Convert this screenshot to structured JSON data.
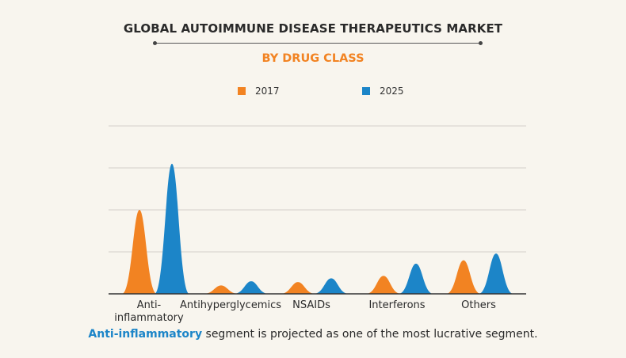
{
  "title": "GLOBAL AUTOIMMUNE DISEASE THERAPEUTICS MARKET",
  "subtitle": "BY DRUG CLASS",
  "legend": [
    {
      "label": "2017",
      "color": "#f28322"
    },
    {
      "label": "2025",
      "color": "#1c85c8"
    }
  ],
  "caption": {
    "highlight": "Anti-inflammatory",
    "rest": " segment is projected as one of the most lucrative segment."
  },
  "chart_data": {
    "type": "area",
    "categories": [
      "Anti-inflammatory",
      "Antihyperglycemics",
      "NSAIDs",
      "Interferons",
      "Others"
    ],
    "series": [
      {
        "name": "2017",
        "color": "#f28322",
        "values": [
          2.0,
          0.2,
          0.28,
          0.43,
          0.8
        ]
      },
      {
        "name": "2025",
        "color": "#1c85c8",
        "values": [
          3.1,
          0.3,
          0.37,
          0.72,
          0.96
        ]
      }
    ],
    "ylim": [
      0,
      4
    ],
    "grid": true,
    "legend_position": "top"
  }
}
